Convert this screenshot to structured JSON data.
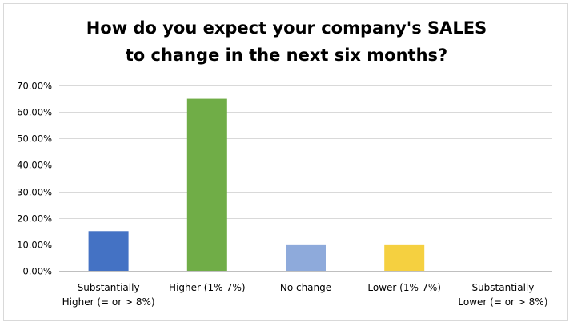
{
  "chart_data": {
    "type": "bar",
    "title_lines": [
      "How do you expect your company's SALES",
      "to change in the next six months?"
    ],
    "categories": [
      [
        "Substantially",
        "Higher (= or > 8%)"
      ],
      [
        "Higher (1%-7%)"
      ],
      [
        "No change"
      ],
      [
        "Lower (1%-7%)"
      ],
      [
        "Substantially",
        "Lower (= or > 8%)"
      ]
    ],
    "values": [
      15.0,
      65.0,
      10.0,
      10.0,
      0.0
    ],
    "bar_colors": [
      "#4472C4",
      "#70AD47",
      "#8EAADB",
      "#F5D040",
      "#A5A5A5"
    ],
    "ylim": [
      0,
      70
    ],
    "yticks": [
      0,
      10,
      20,
      30,
      40,
      50,
      60,
      70
    ],
    "ytick_labels": [
      "0.00%",
      "10.00%",
      "20.00%",
      "30.00%",
      "40.00%",
      "50.00%",
      "60.00%",
      "70.00%"
    ],
    "grid": true,
    "legend": false
  }
}
